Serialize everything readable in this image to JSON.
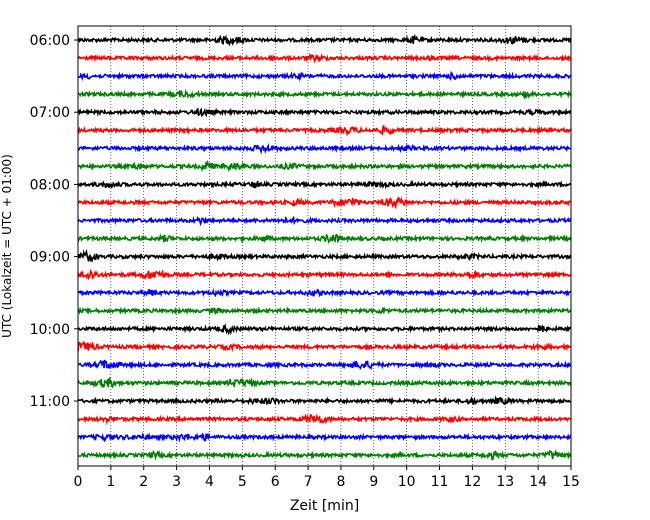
{
  "chart_data": {
    "type": "line",
    "title": "",
    "xlabel": "Zeit  [min]",
    "ylabel": "UTC (Lokalzeit = UTC + 01:00)",
    "xlim": [
      0,
      15
    ],
    "x_ticks": [
      0,
      1,
      2,
      3,
      4,
      5,
      6,
      7,
      8,
      9,
      10,
      11,
      12,
      13,
      14,
      15
    ],
    "y_tick_labels": [
      "06:00",
      "07:00",
      "08:00",
      "09:00",
      "10:00",
      "11:00"
    ],
    "y_tick_trace_index": [
      0,
      4,
      8,
      12,
      16,
      20
    ],
    "grid": "vertical dotted",
    "legend": "none",
    "trace_colors": [
      "#000000",
      "#ff0000",
      "#0000ff",
      "#008000"
    ],
    "traces": [
      {
        "start": "06:00",
        "color": "#000000"
      },
      {
        "start": "06:15",
        "color": "#ff0000"
      },
      {
        "start": "06:30",
        "color": "#0000ff"
      },
      {
        "start": "06:45",
        "color": "#008000"
      },
      {
        "start": "07:00",
        "color": "#000000"
      },
      {
        "start": "07:15",
        "color": "#ff0000"
      },
      {
        "start": "07:30",
        "color": "#0000ff"
      },
      {
        "start": "07:45",
        "color": "#008000"
      },
      {
        "start": "08:00",
        "color": "#000000"
      },
      {
        "start": "08:15",
        "color": "#ff0000"
      },
      {
        "start": "08:30",
        "color": "#0000ff"
      },
      {
        "start": "08:45",
        "color": "#008000"
      },
      {
        "start": "09:00",
        "color": "#000000"
      },
      {
        "start": "09:15",
        "color": "#ff0000"
      },
      {
        "start": "09:30",
        "color": "#0000ff"
      },
      {
        "start": "09:45",
        "color": "#008000"
      },
      {
        "start": "10:00",
        "color": "#000000"
      },
      {
        "start": "10:15",
        "color": "#ff0000"
      },
      {
        "start": "10:30",
        "color": "#0000ff"
      },
      {
        "start": "10:45",
        "color": "#008000"
      },
      {
        "start": "11:00",
        "color": "#000000"
      },
      {
        "start": "11:15",
        "color": "#ff0000"
      },
      {
        "start": "11:30",
        "color": "#0000ff"
      },
      {
        "start": "11:45",
        "color": "#008000"
      }
    ]
  }
}
